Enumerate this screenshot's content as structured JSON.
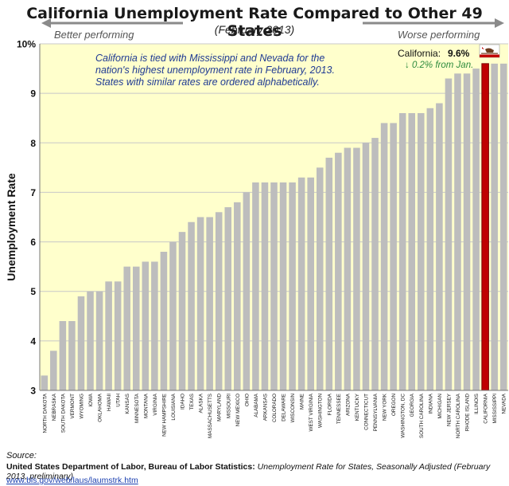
{
  "header": {
    "title": "California Unemployment Rate Compared to Other 49 States",
    "subtitle": "(February 2013)",
    "left_label": "Better performing",
    "right_label": "Worse performing"
  },
  "annotation": {
    "line1": "California is tied with Mississippi and Nevada for the",
    "line2": "nation's highest unemployment rate in February, 2013.",
    "line3": "States with similar rates are ordered alphabetically."
  },
  "callout": {
    "label": "California:",
    "value": "9.6%",
    "change": "↓ 0.2% from Jan."
  },
  "source": {
    "heading": "Source:",
    "org": "United States Department of Labor, Bureau of Labor Statistics:",
    "doc": "Unemployment Rate for States, Seasonally Adjusted",
    "doc_note": "(February 2013, preliminary)",
    "url": "www.bls.gov/web/laus/laumstrk.htm"
  },
  "colors": {
    "bar": "#bdbdbd",
    "highlight": "#c00000",
    "plot_bg": "#ffffcc",
    "annotation_text": "#1f3a93",
    "callout_change": "#2e8b3e"
  },
  "chart_data": {
    "type": "bar",
    "title": "California Unemployment Rate Compared to Other 49 States",
    "subtitle": "(February 2013)",
    "ylabel": "Unemployment Rate",
    "xlabel": "",
    "ylim": [
      3,
      10
    ],
    "yticks": [
      3,
      4,
      5,
      6,
      7,
      8,
      9,
      10
    ],
    "ytick_labels": [
      "3",
      "4",
      "5",
      "6",
      "7",
      "8",
      "9",
      "10%"
    ],
    "grid": true,
    "highlight": "CALIFORNIA",
    "categories": [
      "NORTH DAKOTA",
      "NEBRASKA",
      "SOUTH DAKOTA",
      "VERMONT",
      "WYOMING",
      "IOWA",
      "OKLAHOMA",
      "HAWAII",
      "UTAH",
      "KANSAS",
      "MINNESOTA",
      "MONTANA",
      "VIRGINIA",
      "NEW HAMPSHIRE",
      "LOUISIANA",
      "IDAHO",
      "TEXAS",
      "ALASKA",
      "MASSACHUSETTS",
      "MARYLAND",
      "MISSOURI",
      "NEW MEXICO",
      "OHIO",
      "ALABAMA",
      "ARKANSAS",
      "COLORADO",
      "DELAWARE",
      "WISCONSIN",
      "MAINE",
      "WEST VIRGINIA",
      "WASHINGTON",
      "FLORIDA",
      "TENNESSEE",
      "ARIZONA",
      "KENTUCKY",
      "CONNECTICUT",
      "PENNSYLVANIA",
      "NEW YORK",
      "OREGON",
      "WASHINGTON, DC",
      "GEORGIA",
      "SOUTH CAROLINA",
      "INDIANA",
      "MICHIGAN",
      "NEW JERSEY",
      "NORTH CAROLINA",
      "RHODE ISLAND",
      "ILLINOIS",
      "CALIFORNIA",
      "MISSISSIPPI",
      "NEVADA"
    ],
    "values": [
      3.3,
      3.8,
      4.4,
      4.4,
      4.9,
      5.0,
      5.0,
      5.2,
      5.2,
      5.5,
      5.5,
      5.6,
      5.6,
      5.8,
      6.0,
      6.2,
      6.4,
      6.5,
      6.5,
      6.6,
      6.7,
      6.8,
      7.0,
      7.2,
      7.2,
      7.2,
      7.2,
      7.2,
      7.3,
      7.3,
      7.5,
      7.7,
      7.8,
      7.9,
      7.9,
      8.0,
      8.1,
      8.4,
      8.4,
      8.6,
      8.6,
      8.6,
      8.7,
      8.8,
      9.3,
      9.4,
      9.4,
      9.5,
      9.6,
      9.6,
      9.6
    ]
  }
}
